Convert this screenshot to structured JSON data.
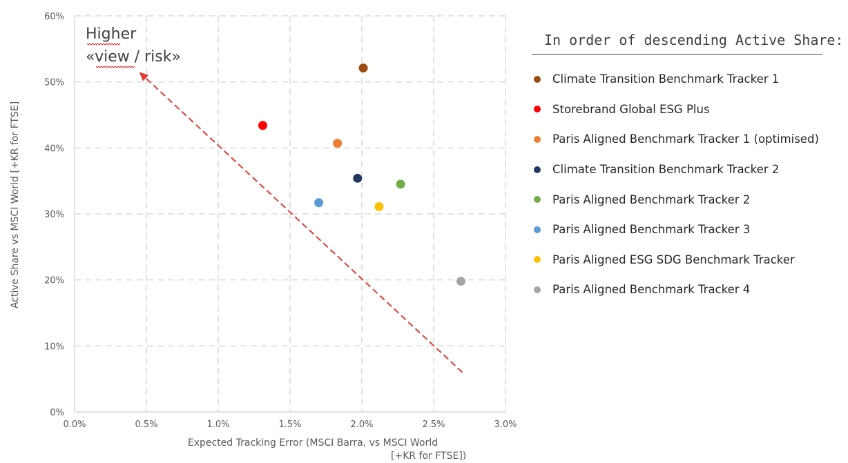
{
  "chart_data": {
    "type": "scatter",
    "xlabel": "Expected Tracking Error (MSCI Barra, vs MSCI World",
    "xlabel_line2": "[+KR for FTSE])",
    "ylabel": "Active Share vs MSCI World [+KR for FTSE]",
    "xlim": [
      0,
      3.0
    ],
    "ylim": [
      0,
      60
    ],
    "x_ticks": [
      "0.0%",
      "0.5%",
      "1.0%",
      "1.5%",
      "2.0%",
      "2.5%",
      "3.0%"
    ],
    "y_ticks": [
      "0%",
      "10%",
      "20%",
      "30%",
      "40%",
      "50%",
      "60%"
    ],
    "grid": true,
    "legend_title": "In order of descending Active Share:",
    "legend_position": "right",
    "annotation_line1": "Higher",
    "annotation_line2": "«view / risk»",
    "arrow": {
      "from": [
        2.7,
        6
      ],
      "to": [
        0.45,
        51.5
      ],
      "color": "#e03c31",
      "style": "dashed"
    },
    "series": [
      {
        "name": "Climate Transition Benchmark Tracker 1",
        "color": "#9c4a0e",
        "x": 2.01,
        "y": 52.1
      },
      {
        "name": "Storebrand Global ESG Plus",
        "color": "#ff0000",
        "x": 1.31,
        "y": 43.4
      },
      {
        "name": "Paris Aligned Benchmark Tracker 1 (optimised)",
        "color": "#ed7d31",
        "x": 1.83,
        "y": 40.7
      },
      {
        "name": "Climate Transition Benchmark Tracker 2",
        "color": "#1f3864",
        "x": 1.97,
        "y": 35.4
      },
      {
        "name": "Paris Aligned Benchmark Tracker 2",
        "color": "#70ad47",
        "x": 2.27,
        "y": 34.5
      },
      {
        "name": "Paris Aligned Benchmark Tracker 3",
        "color": "#5b9bd5",
        "x": 1.7,
        "y": 31.7
      },
      {
        "name": "Paris Aligned ESG SDG Benchmark Tracker",
        "color": "#ffc000",
        "x": 2.12,
        "y": 31.1
      },
      {
        "name": "Paris Aligned Benchmark Tracker 4",
        "color": "#a5a5a5",
        "x": 2.69,
        "y": 19.8
      }
    ]
  }
}
